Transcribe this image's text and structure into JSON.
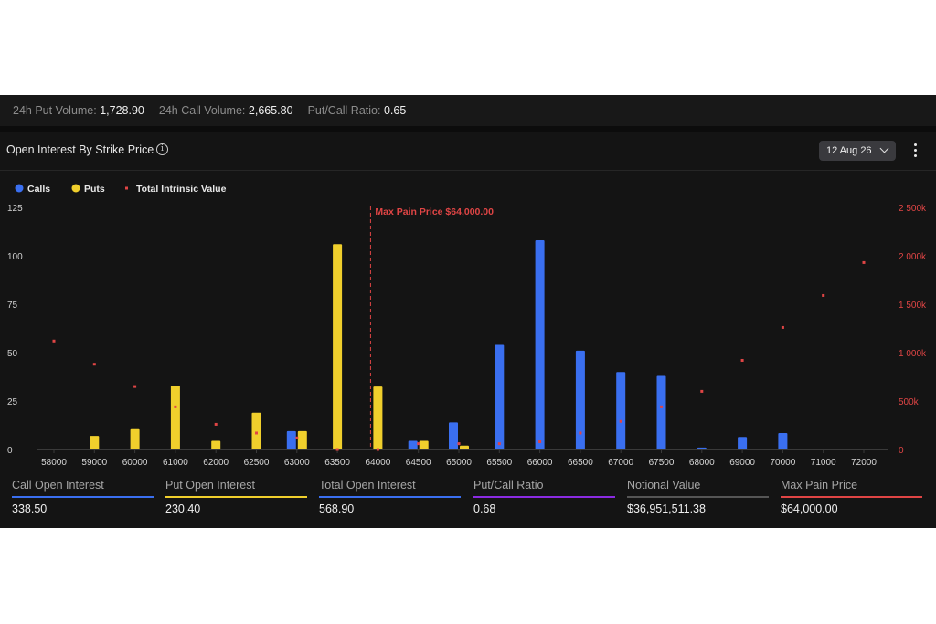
{
  "stats_bar": {
    "put_volume_label": "24h Put Volume:",
    "put_volume_value": "1,728.90",
    "call_volume_label": "24h Call Volume:",
    "call_volume_value": "2,665.80",
    "ratio_label": "Put/Call Ratio:",
    "ratio_value": "0.65"
  },
  "header": {
    "title": "Open Interest By Strike Price",
    "info_icon": "info-circle-icon",
    "date_selected": "12 Aug 26",
    "menu_icon": "more-vertical-icon"
  },
  "colors": {
    "calls": "#3a6ff0",
    "puts": "#f0cf2c",
    "intrinsic": "#e04545",
    "max_pain": "#e04545",
    "ratio": "#8a2be2",
    "notional": "#555555"
  },
  "chart_data": {
    "type": "bar",
    "legend": [
      "Calls",
      "Puts",
      "Total Intrinsic Value"
    ],
    "legend_position": "top-left",
    "categories": [
      "58000",
      "59000",
      "60000",
      "61000",
      "62000",
      "62500",
      "63000",
      "63500",
      "64000",
      "64500",
      "65000",
      "65500",
      "66000",
      "66500",
      "67000",
      "67500",
      "68000",
      "69000",
      "70000",
      "71000",
      "72000"
    ],
    "series": [
      {
        "name": "Calls",
        "axis": "left",
        "values": [
          0,
          0,
          0,
          0,
          0,
          0,
          9.5,
          0,
          0,
          4.5,
          14,
          54,
          108,
          51,
          40,
          38,
          1,
          6.5,
          8.5,
          0,
          0
        ]
      },
      {
        "name": "Puts",
        "axis": "left",
        "values": [
          0,
          7,
          10.5,
          33,
          4.5,
          19,
          9.5,
          106,
          32.5,
          4.5,
          2,
          0,
          0,
          0,
          0,
          0,
          0,
          0,
          0,
          0,
          0
        ]
      },
      {
        "name": "Total Intrinsic Value",
        "axis": "right",
        "type": "scatter",
        "values": [
          1120000,
          880000,
          650000,
          440000,
          260000,
          170000,
          120000,
          0,
          0,
          60000,
          60000,
          60000,
          80000,
          170000,
          290000,
          440000,
          600000,
          920000,
          1260000,
          1590000,
          1930000
        ]
      }
    ],
    "left_axis": {
      "min": 0,
      "max": 125,
      "ticks": [
        "0",
        "25",
        "50",
        "75",
        "100",
        "125"
      ]
    },
    "right_axis": {
      "min": 0,
      "max": 2500000,
      "ticks": [
        "0",
        "500k",
        "1 000k",
        "1 500k",
        "2 000k",
        "2 500k"
      ]
    },
    "max_pain": {
      "strike": "64000",
      "label": "Max Pain Price $64,000.00"
    },
    "grid": false
  },
  "metrics": [
    {
      "label": "Call Open Interest",
      "value": "338.50",
      "color": "#3a6ff0"
    },
    {
      "label": "Put Open Interest",
      "value": "230.40",
      "color": "#f0cf2c"
    },
    {
      "label": "Total Open Interest",
      "value": "568.90",
      "color": "#3a6ff0"
    },
    {
      "label": "Put/Call Ratio",
      "value": "0.68",
      "color": "#8a2be2"
    },
    {
      "label": "Notional Value",
      "value": "$36,951,511.38",
      "color": "#555555"
    },
    {
      "label": "Max Pain Price",
      "value": "$64,000.00",
      "color": "#e04545"
    }
  ]
}
